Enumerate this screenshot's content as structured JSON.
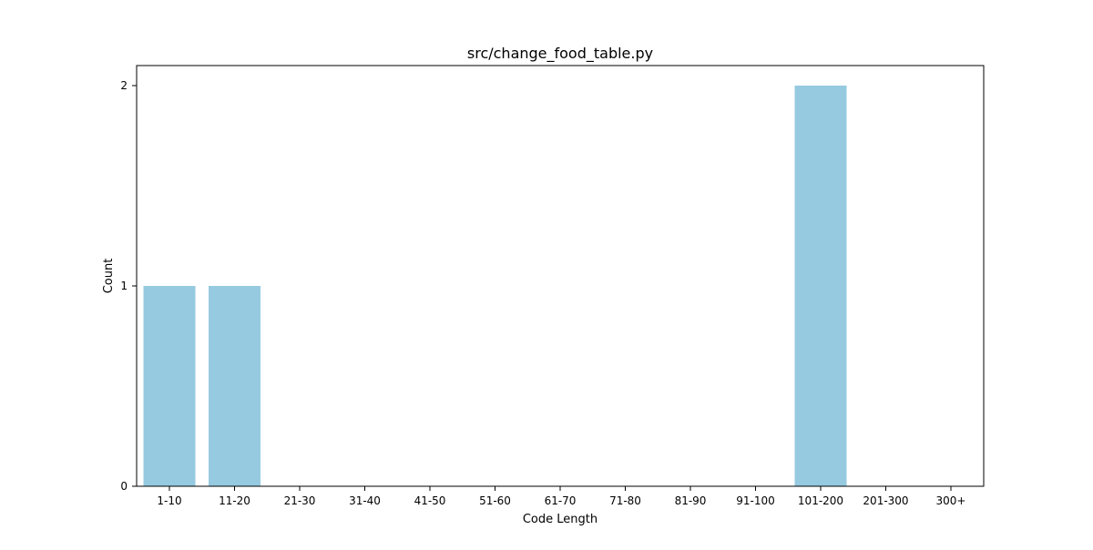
{
  "chart_data": {
    "type": "bar",
    "title": "src/change_food_table.py",
    "xlabel": "Code Length",
    "ylabel": "Count",
    "categories": [
      "1-10",
      "11-20",
      "21-30",
      "31-40",
      "41-50",
      "51-60",
      "61-70",
      "71-80",
      "81-90",
      "91-100",
      "101-200",
      "201-300",
      "300+"
    ],
    "values": [
      1,
      1,
      0,
      0,
      0,
      0,
      0,
      0,
      0,
      0,
      2,
      0,
      0
    ],
    "yticks": [
      0,
      1,
      2
    ],
    "ytick_labels": [
      "0",
      "1",
      "2"
    ],
    "ylim": [
      0,
      2.1
    ],
    "grid": false,
    "bar_color": "#96CAE0"
  }
}
